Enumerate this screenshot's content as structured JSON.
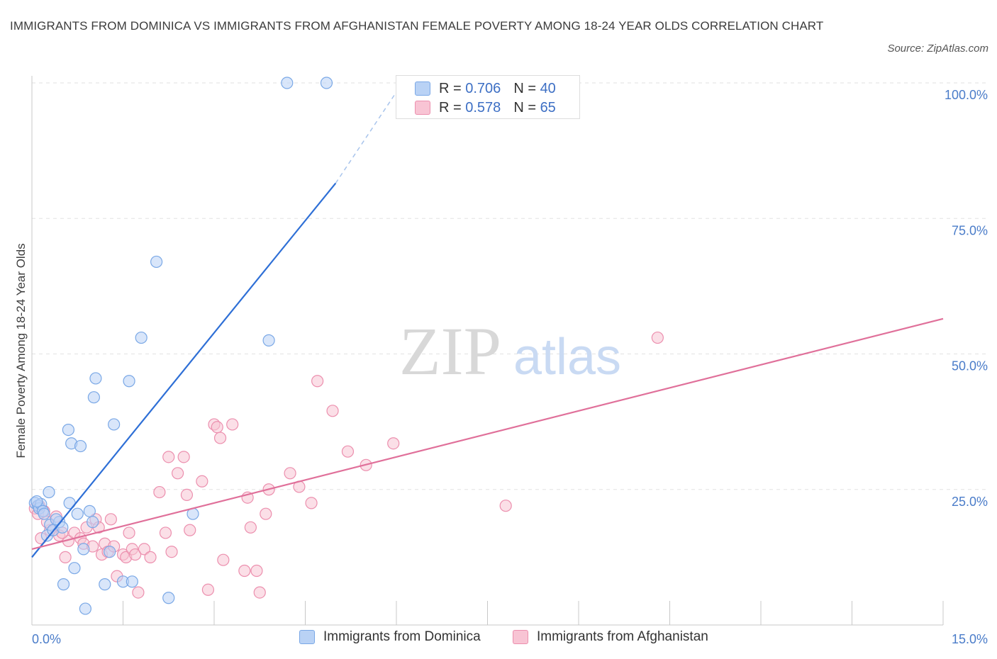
{
  "title": "IMMIGRANTS FROM DOMINICA VS IMMIGRANTS FROM AFGHANISTAN FEMALE POVERTY AMONG 18-24 YEAR OLDS CORRELATION CHART",
  "source": "Source: ZipAtlas.com",
  "watermark": {
    "zip": "ZIP",
    "atlas": "atlas"
  },
  "legend": {
    "r_label": "R =",
    "n_label": "N =",
    "series": [
      {
        "r": "0.706",
        "n": "40"
      },
      {
        "r": "0.578",
        "n": "65"
      }
    ]
  },
  "colors": {
    "dominica_fill": "#b9d2f5",
    "dominica_stroke": "#7aa8e6",
    "dominica_line": "#2e6fd6",
    "afghanistan_fill": "#f8c4d4",
    "afghanistan_stroke": "#ec8fae",
    "afghanistan_line": "#e0709a"
  },
  "chart_data": {
    "type": "scatter",
    "title": "IMMIGRANTS FROM DOMINICA VS IMMIGRANTS FROM AFGHANISTAN FEMALE POVERTY AMONG 18-24 YEAR OLDS CORRELATION CHART",
    "xlabel": "",
    "ylabel": "Female Poverty Among 18-24 Year Olds",
    "xlim": [
      0,
      15
    ],
    "ylim": [
      0,
      100
    ],
    "x_tick_labels": [
      "0.0%",
      "15.0%"
    ],
    "y_ticks": [
      25,
      50,
      75,
      100
    ],
    "y_tick_labels": [
      "25.0%",
      "50.0%",
      "75.0%",
      "100.0%"
    ],
    "grid": true,
    "legend_position": "top-center",
    "series": [
      {
        "name": "Immigrants from Dominica",
        "r": 0.706,
        "n": 40,
        "trend": {
          "x": [
            0,
            5.0
          ],
          "y": [
            12.5,
            81.5
          ],
          "dashed_to": [
            6.1,
            100
          ]
        },
        "points": [
          [
            0.05,
            22.5
          ],
          [
            0.1,
            22.0
          ],
          [
            0.12,
            21.5
          ],
          [
            0.15,
            22.3
          ],
          [
            0.18,
            21.0
          ],
          [
            0.2,
            20.5
          ],
          [
            0.25,
            16.5
          ],
          [
            0.28,
            24.5
          ],
          [
            0.3,
            18.5
          ],
          [
            0.35,
            17.5
          ],
          [
            0.45,
            19.0
          ],
          [
            0.5,
            18.0
          ],
          [
            0.52,
            7.5
          ],
          [
            0.6,
            36.0
          ],
          [
            0.62,
            22.5
          ],
          [
            0.65,
            33.5
          ],
          [
            0.7,
            10.5
          ],
          [
            0.75,
            20.5
          ],
          [
            0.8,
            33.0
          ],
          [
            0.85,
            14.0
          ],
          [
            0.88,
            3.0
          ],
          [
            0.95,
            21.0
          ],
          [
            1.0,
            19.0
          ],
          [
            1.02,
            42.0
          ],
          [
            1.05,
            45.5
          ],
          [
            1.2,
            7.5
          ],
          [
            1.28,
            13.5
          ],
          [
            1.35,
            37.0
          ],
          [
            1.5,
            8.0
          ],
          [
            1.6,
            45.0
          ],
          [
            1.65,
            8.0
          ],
          [
            1.8,
            53.0
          ],
          [
            2.05,
            67.0
          ],
          [
            2.25,
            5.0
          ],
          [
            2.65,
            20.5
          ],
          [
            3.9,
            52.5
          ],
          [
            4.2,
            100.0
          ],
          [
            4.85,
            100.0
          ],
          [
            0.08,
            22.8
          ],
          [
            0.4,
            19.5
          ]
        ]
      },
      {
        "name": "Immigrants from Afghanistan",
        "r": 0.578,
        "n": 65,
        "trend": {
          "x": [
            0,
            15.0
          ],
          "y": [
            14.0,
            56.5
          ]
        },
        "points": [
          [
            0.05,
            21.5
          ],
          [
            0.1,
            20.5
          ],
          [
            0.15,
            16.0
          ],
          [
            0.2,
            21.0
          ],
          [
            0.3,
            17.5
          ],
          [
            0.4,
            20.0
          ],
          [
            0.45,
            16.5
          ],
          [
            0.55,
            12.5
          ],
          [
            0.6,
            15.5
          ],
          [
            0.7,
            17.0
          ],
          [
            0.8,
            16.0
          ],
          [
            0.85,
            15.0
          ],
          [
            0.9,
            18.0
          ],
          [
            1.0,
            14.5
          ],
          [
            1.05,
            19.5
          ],
          [
            1.1,
            18.0
          ],
          [
            1.15,
            13.0
          ],
          [
            1.2,
            15.0
          ],
          [
            1.25,
            13.5
          ],
          [
            1.3,
            19.5
          ],
          [
            1.35,
            14.5
          ],
          [
            1.4,
            9.0
          ],
          [
            1.5,
            13.0
          ],
          [
            1.55,
            12.5
          ],
          [
            1.6,
            17.0
          ],
          [
            1.65,
            14.0
          ],
          [
            1.7,
            13.0
          ],
          [
            1.75,
            6.0
          ],
          [
            1.85,
            14.0
          ],
          [
            1.95,
            12.5
          ],
          [
            2.1,
            24.5
          ],
          [
            2.2,
            17.0
          ],
          [
            2.25,
            31.0
          ],
          [
            2.3,
            13.5
          ],
          [
            2.4,
            28.0
          ],
          [
            2.5,
            31.0
          ],
          [
            2.55,
            24.0
          ],
          [
            2.6,
            17.5
          ],
          [
            2.8,
            26.5
          ],
          [
            2.9,
            6.5
          ],
          [
            3.0,
            37.0
          ],
          [
            3.05,
            36.5
          ],
          [
            3.1,
            34.5
          ],
          [
            3.15,
            12.0
          ],
          [
            3.3,
            37.0
          ],
          [
            3.5,
            10.0
          ],
          [
            3.55,
            23.5
          ],
          [
            3.6,
            18.0
          ],
          [
            3.7,
            10.0
          ],
          [
            3.75,
            6.0
          ],
          [
            3.85,
            20.5
          ],
          [
            3.9,
            25.0
          ],
          [
            4.25,
            28.0
          ],
          [
            4.4,
            25.5
          ],
          [
            4.6,
            22.5
          ],
          [
            4.7,
            45.0
          ],
          [
            4.95,
            39.5
          ],
          [
            5.2,
            32.0
          ],
          [
            5.5,
            29.5
          ],
          [
            5.95,
            33.5
          ],
          [
            7.8,
            22.0
          ],
          [
            10.3,
            53.0
          ],
          [
            0.12,
            22.0
          ],
          [
            0.25,
            19.0
          ],
          [
            0.5,
            17.0
          ]
        ]
      }
    ]
  }
}
